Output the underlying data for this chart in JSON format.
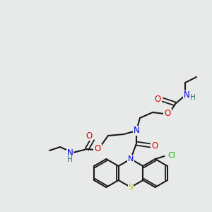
{
  "bg_color": "#e8eaea",
  "atom_colors": {
    "C": "#1a1a1a",
    "N": "#0000e0",
    "O": "#e00000",
    "S": "#b8b800",
    "Cl": "#00b000",
    "H": "#207070"
  },
  "bond_color": "#1a1a1a",
  "figsize": [
    3.0,
    3.0
  ],
  "dpi": 100
}
